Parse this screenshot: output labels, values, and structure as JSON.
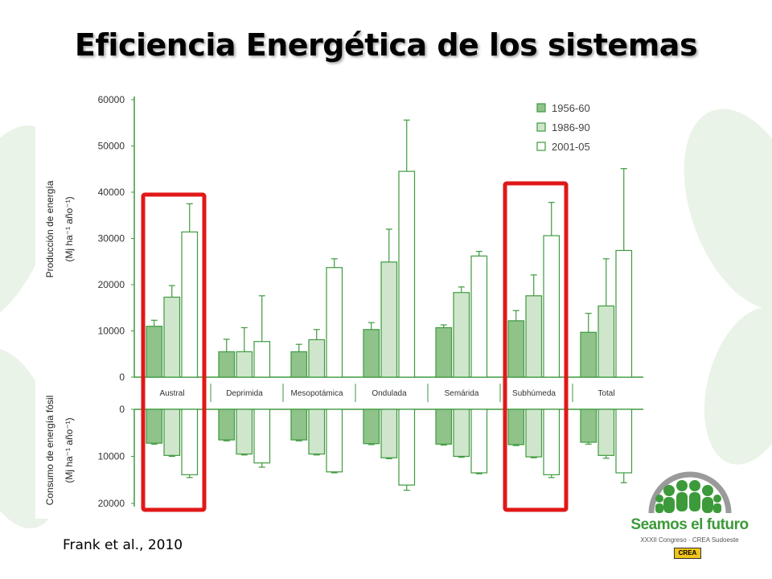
{
  "slide": {
    "title": "Eficiencia Energética de los sistemas",
    "citation": "Frank et al., 2010"
  },
  "logo": {
    "name": "Seamos el futuro",
    "subtitle": "XXXII Congreso · CREA Sudoeste",
    "badge": "CREA"
  },
  "colors": {
    "dark_green": "#8fc38a",
    "light_green": "#cfe6cc",
    "outline": "#3e9a3e",
    "highlight_red": "#e11818",
    "axis": "#3e9a3e",
    "band": "#ffffff"
  },
  "chart_data": {
    "type": "bar",
    "categories": [
      "Austral",
      "Deprimida",
      "Mesopotámica",
      "Ondulada",
      "Semárida",
      "Subhúmeda",
      "Total"
    ],
    "series": [
      {
        "name": "1956-60",
        "color": "#8fc38a",
        "production": [
          11000,
          5500,
          5500,
          10300,
          10700,
          12200,
          9700
        ],
        "production_err": [
          12300,
          8200,
          7100,
          11800,
          11300,
          14400,
          13800
        ],
        "consumption": [
          7200,
          6500,
          6500,
          7300,
          7400,
          7500,
          7000
        ],
        "consumption_err": [
          7400,
          6700,
          6700,
          7500,
          7600,
          7700,
          7400
        ]
      },
      {
        "name": "1986-90",
        "color": "#cfe6cc",
        "production": [
          17300,
          5500,
          8100,
          24900,
          18300,
          17600,
          15400
        ],
        "production_err": [
          19800,
          10700,
          10300,
          32000,
          19500,
          22100,
          25600
        ],
        "consumption": [
          9800,
          9500,
          9500,
          10300,
          10000,
          10100,
          9800
        ],
        "consumption_err": [
          10000,
          9700,
          9700,
          10500,
          10200,
          10300,
          10400
        ]
      },
      {
        "name": "2001-05",
        "color": "#ffffff",
        "production": [
          31400,
          7700,
          23700,
          44500,
          26200,
          30600,
          27400
        ],
        "production_err": [
          37500,
          17600,
          25600,
          55600,
          27200,
          37800,
          45100
        ],
        "consumption": [
          13900,
          11400,
          13300,
          16100,
          13500,
          13900,
          13500
        ],
        "consumption_err": [
          14500,
          12300,
          13500,
          17200,
          13700,
          14500,
          15600
        ]
      }
    ],
    "production_axis": {
      "label": "Producción de energía",
      "unit_label": "(Mj ha⁻¹ año⁻¹)",
      "ticks": [
        "60000",
        "50000",
        "40000",
        "30000",
        "20000",
        "10000",
        "0"
      ],
      "ylim": [
        0,
        60000
      ]
    },
    "consumption_axis": {
      "label": "Consumo de energía fósil",
      "unit_label": "(Mj ha⁻¹ año⁻¹)",
      "ticks": [
        "0",
        "10000",
        "20000"
      ],
      "ylim": [
        0,
        20000
      ]
    },
    "highlighted_categories": [
      "Austral",
      "Subhúmeda"
    ],
    "legend_placement": "top-right",
    "grid": false
  }
}
